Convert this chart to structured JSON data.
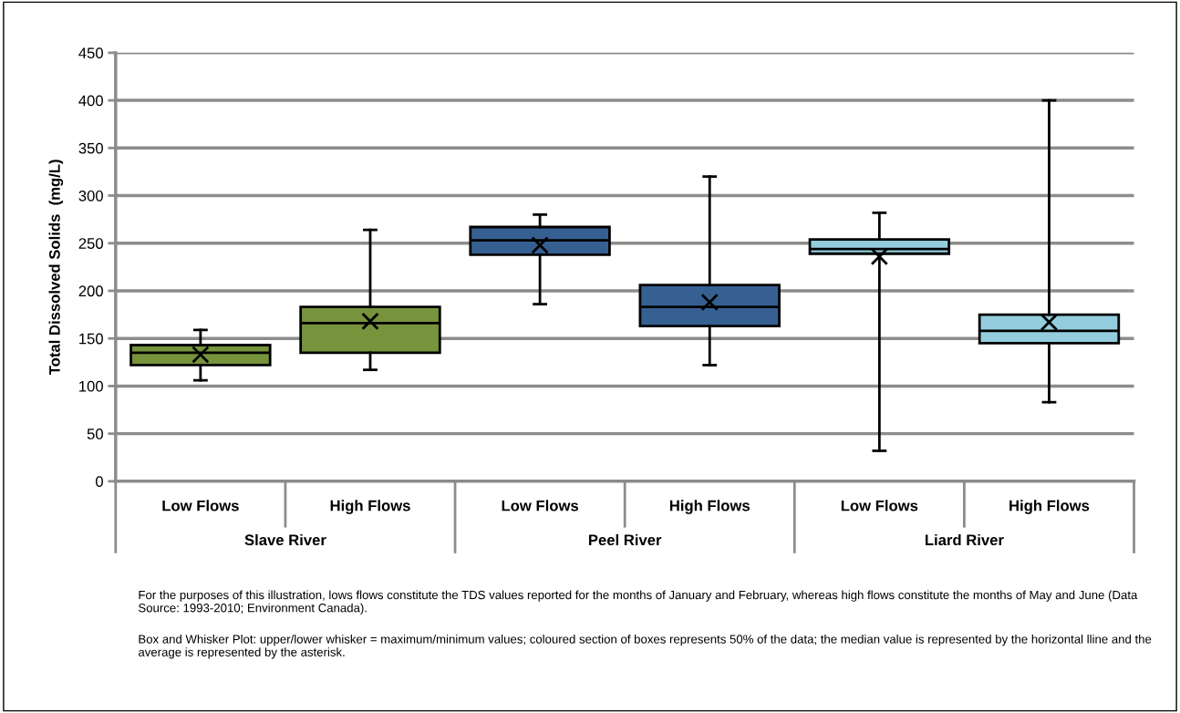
{
  "chart_data": {
    "type": "box",
    "ylabel": "Total Dissolved Solids  (mg/L)",
    "categories": [
      "Low Flows",
      "High Flows",
      "Low Flows",
      "High Flows",
      "Low Flows",
      "High Flows"
    ],
    "series": [
      {
        "color": "#77933c",
        "boxes": [
          {
            "low": 106,
            "q1": 122,
            "median": 135,
            "q3": 143,
            "high": 159,
            "mean": 133
          },
          {
            "low": 117,
            "q1": 135,
            "median": 166,
            "q3": 183,
            "high": 264,
            "mean": 168
          },
          null,
          null,
          null,
          null
        ]
      },
      {
        "color": "#376092",
        "boxes": [
          null,
          null,
          {
            "low": 186,
            "q1": 238,
            "median": 253,
            "q3": 267,
            "high": 280,
            "mean": 248
          },
          {
            "low": 122,
            "q1": 163,
            "median": 183,
            "q3": 206,
            "high": 320,
            "mean": 188
          },
          null,
          null
        ]
      },
      {
        "color": "#93cddd",
        "boxes": [
          null,
          null,
          null,
          null,
          {
            "low": 32,
            "q1": 239,
            "median": 244,
            "q3": 254,
            "high": 282,
            "mean": 236
          },
          {
            "low": 83,
            "q1": 145,
            "median": 158,
            "q3": 175,
            "high": 400,
            "mean": 167
          }
        ]
      }
    ],
    "ylim": [
      0,
      450
    ],
    "yticks": [
      0,
      50,
      100,
      150,
      200,
      250,
      300,
      350,
      400,
      450
    ],
    "grid": "y",
    "legend": false,
    "annotations": [
      "Slave River",
      "Peel River",
      "Liard River",
      "For the purposes of this illustration, lows flows constitute the TDS values reported for the months of January and February, whereas high flows constitute the months of May and June (Data Source: 1993-2010; Environment Canada).",
      "Box and Whisker Plot: upper/lower whisker = maximum/minimum values; coloured section of boxes represents 50% of the data; the median value is represented by the horizontal lline and the average is represented by the asterisk."
    ]
  }
}
